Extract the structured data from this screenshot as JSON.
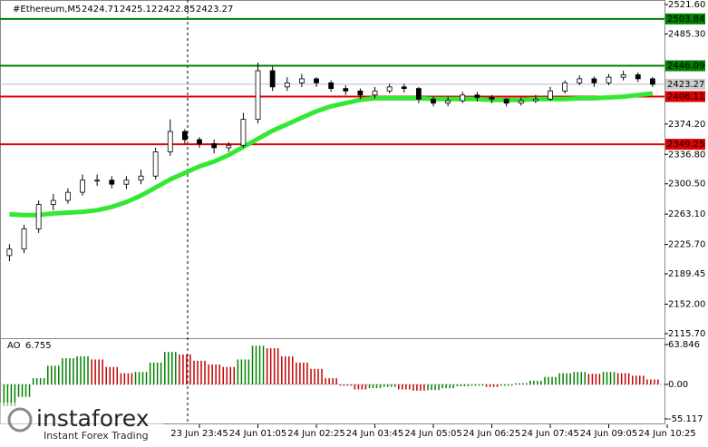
{
  "chart_data": [
    {
      "type": "candlestick",
      "symbol": "#Ethereum,M5",
      "header_values": [
        2424.71,
        2425.12,
        2422.85,
        2423.27
      ],
      "open": [
        2212,
        2220,
        2245,
        2275,
        2280,
        2290,
        2305,
        2305,
        2300,
        2305,
        2310,
        2340,
        2365,
        2355,
        2350,
        2345,
        2348,
        2380,
        2440,
        2420,
        2425,
        2430,
        2425,
        2418,
        2415,
        2410,
        2415,
        2420,
        2418,
        2405,
        2400,
        2403,
        2410,
        2407,
        2405,
        2400,
        2403,
        2405,
        2415,
        2425,
        2430,
        2425,
        2432,
        2435,
        2430
      ],
      "high": [
        2226,
        2250,
        2280,
        2288,
        2295,
        2312,
        2312,
        2310,
        2310,
        2318,
        2345,
        2380,
        2368,
        2358,
        2355,
        2352,
        2388,
        2450,
        2445,
        2432,
        2436,
        2432,
        2428,
        2422,
        2418,
        2420,
        2424,
        2424,
        2420,
        2408,
        2408,
        2414,
        2414,
        2410,
        2406,
        2407,
        2410,
        2420,
        2428,
        2434,
        2433,
        2436,
        2440,
        2438,
        2432
      ],
      "low": [
        2205,
        2215,
        2240,
        2268,
        2276,
        2286,
        2298,
        2295,
        2294,
        2300,
        2306,
        2335,
        2350,
        2345,
        2338,
        2340,
        2345,
        2375,
        2415,
        2415,
        2420,
        2420,
        2414,
        2410,
        2405,
        2406,
        2412,
        2413,
        2400,
        2396,
        2396,
        2400,
        2402,
        2400,
        2396,
        2397,
        2400,
        2403,
        2412,
        2422,
        2420,
        2422,
        2428,
        2426,
        2420
      ],
      "close": [
        2220,
        2245,
        2275,
        2280,
        2290,
        2305,
        2305,
        2300,
        2305,
        2310,
        2340,
        2365,
        2355,
        2350,
        2345,
        2348,
        2380,
        2440,
        2420,
        2425,
        2430,
        2425,
        2418,
        2415,
        2410,
        2415,
        2420,
        2418,
        2405,
        2400,
        2403,
        2410,
        2407,
        2405,
        2400,
        2403,
        2405,
        2415,
        2425,
        2430,
        2425,
        2432,
        2435,
        2430,
        2423.27
      ],
      "ma": {
        "color": "#33e833",
        "values": [
          2263,
          2262,
          2262,
          2264,
          2265,
          2266,
          2268,
          2272,
          2278,
          2286,
          2296,
          2306,
          2314,
          2322,
          2328,
          2336,
          2346,
          2356,
          2366,
          2374,
          2382,
          2390,
          2396,
          2400,
          2404,
          2406,
          2406,
          2406,
          2406,
          2405,
          2405,
          2405,
          2405,
          2404,
          2404,
          2404,
          2405,
          2405,
          2405,
          2406,
          2406,
          2407,
          2408,
          2410,
          2412
        ]
      },
      "levels": [
        {
          "value": 2503.84,
          "color": "#008000"
        },
        {
          "value": 2446.09,
          "color": "#008000"
        },
        {
          "value": 2408.11,
          "color": "#e00000"
        },
        {
          "value": 2349.25,
          "color": "#e00000"
        }
      ],
      "last_price": 2423.27,
      "ylim": [
        2110.1,
        2527.19
      ],
      "yticks": [
        {
          "value": 2521.6,
          "label": "2521.60"
        },
        {
          "value": 2485.3,
          "label": "2485.30"
        },
        {
          "value": 2374.2,
          "label": "2374.20"
        },
        {
          "value": 2336.8,
          "label": "2336.80"
        },
        {
          "value": 2300.5,
          "label": "2300.50"
        },
        {
          "value": 2263.1,
          "label": "2263.10"
        },
        {
          "value": 2225.7,
          "label": "2225.70"
        },
        2189.45,
        {
          "value": 2152,
          "label": "2152.00"
        },
        {
          "value": 2115.7,
          "label": "2115.70"
        }
      ],
      "xticks": [
        {
          "value": 13,
          "label": "23 Jun 23:45"
        },
        {
          "value": 17,
          "label": "24 Jun 01:05"
        },
        {
          "value": 21,
          "label": "24 Jun 02:25"
        },
        {
          "value": 25,
          "label": "24 Jun 03:45"
        },
        {
          "value": 29,
          "label": "24 Jun 05:05"
        },
        {
          "value": 33,
          "label": "24 Jun 06:25"
        },
        {
          "value": 37,
          "label": "24 Jun 07:45"
        },
        {
          "value": 41,
          "label": "24 Jun 09:05"
        },
        {
          "value": 45,
          "label": "24 Jun 10:25"
        }
      ]
    },
    {
      "type": "bar",
      "name": "AO",
      "current": 6.755,
      "up_color": "#008000",
      "down_color": "#c00000",
      "values": [
        -35,
        -20,
        10,
        30,
        42,
        45,
        40,
        28,
        18,
        20,
        35,
        52,
        48,
        38,
        32,
        28,
        40,
        62,
        58,
        45,
        35,
        25,
        10,
        -2,
        -8,
        -6,
        -4,
        -8,
        -10,
        -9,
        -6,
        -3,
        -2,
        -4,
        -2,
        2,
        6,
        12,
        18,
        20,
        17,
        20,
        18,
        14,
        8
      ],
      "ylim": [
        -63.9,
        72.6
      ],
      "yticks": [
        63.846,
        {
          "value": 0,
          "label": "0.00"
        },
        -55.117
      ]
    }
  ],
  "logo": {
    "name": "instaforex",
    "tagline": "Instant Forex Trading"
  }
}
